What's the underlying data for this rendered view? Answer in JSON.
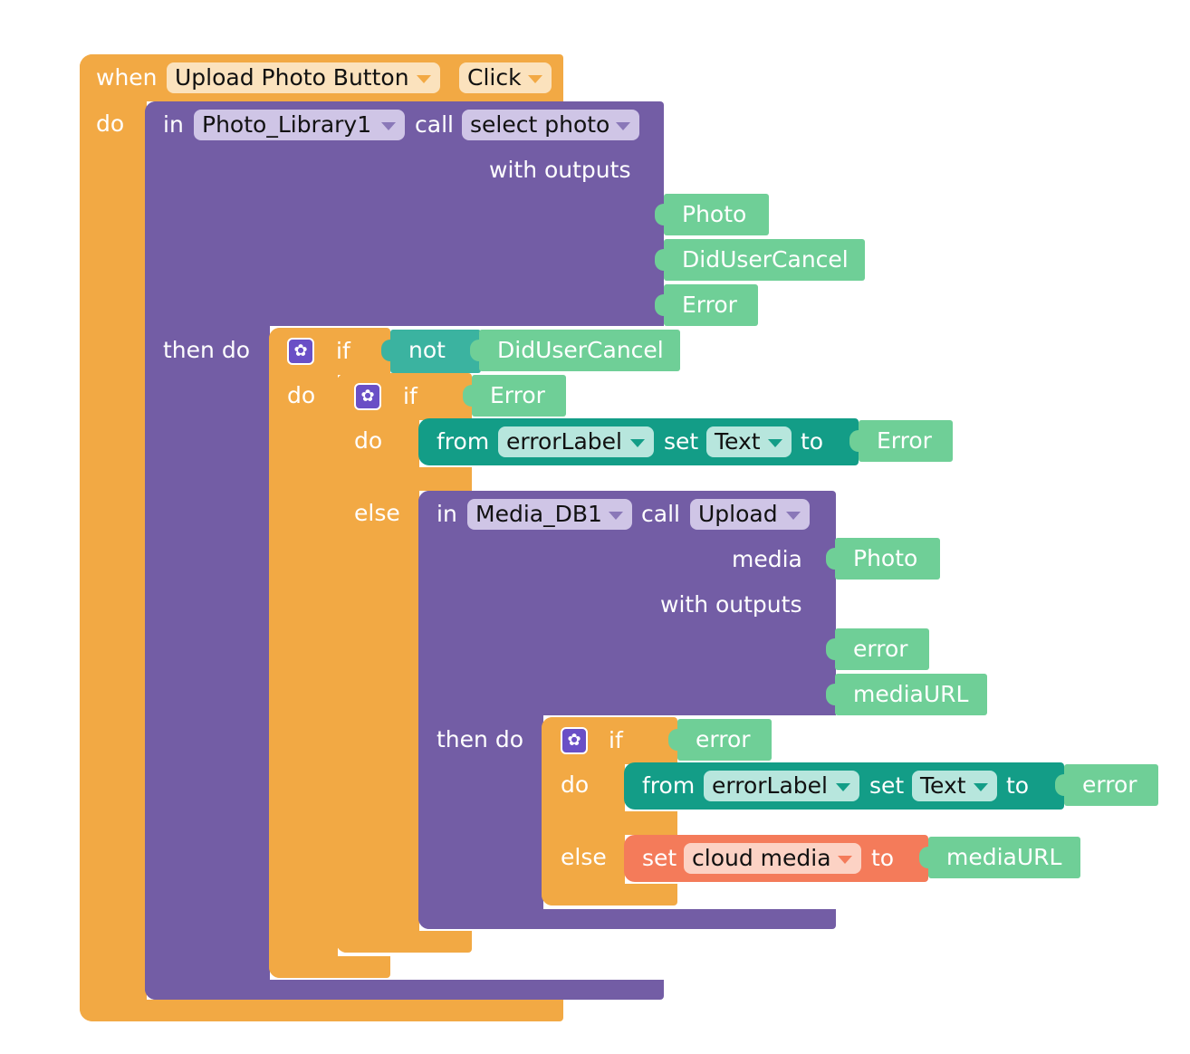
{
  "event": {
    "when_label": "when",
    "component": "Upload Photo Button",
    "event_name": "Click",
    "do_label": "do"
  },
  "call1": {
    "in_label": "in",
    "component": "Photo_Library1",
    "call_label": "call",
    "method": "select photo",
    "with_outputs_label": "with outputs",
    "outputs": [
      "Photo",
      "DidUserCancel",
      "Error"
    ],
    "then_do_label": "then do"
  },
  "if1": {
    "if_label": "if",
    "do_label": "do",
    "not_label": "not",
    "condition": "DidUserCancel"
  },
  "if2": {
    "if_label": "if",
    "condition": "Error",
    "do_label": "do",
    "else_label": "else",
    "set_block": {
      "from_label": "from",
      "component": "errorLabel",
      "set_label": "set",
      "property": "Text",
      "to_label": "to",
      "value": "Error"
    }
  },
  "call2": {
    "in_label": "in",
    "component": "Media_DB1",
    "call_label": "call",
    "method": "Upload",
    "media_label": "media",
    "media_value": "Photo",
    "with_outputs_label": "with outputs",
    "outputs": [
      "error",
      "mediaURL"
    ],
    "then_do_label": "then do"
  },
  "if3": {
    "if_label": "if",
    "condition": "error",
    "do_label": "do",
    "else_label": "else",
    "set_block": {
      "from_label": "from",
      "component": "errorLabel",
      "set_label": "set",
      "property": "Text",
      "to_label": "to",
      "value": "error"
    },
    "var_set": {
      "set_label": "set",
      "variable": "cloud media",
      "to_label": "to",
      "value": "mediaURL"
    }
  },
  "colors": {
    "event": "#f2a944",
    "procedure": "#735da5",
    "component_set": "#139d87",
    "logic": "#3bb3a0",
    "value": "#6fcf97",
    "variable": "#f47b5a"
  }
}
